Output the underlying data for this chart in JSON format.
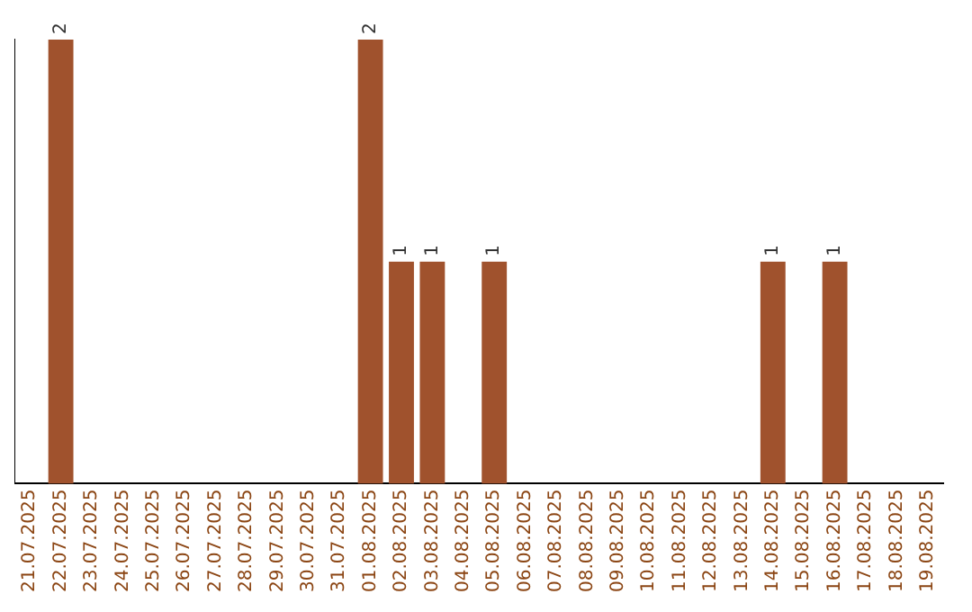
{
  "chart_data": {
    "type": "bar",
    "categories": [
      "21.07.2025",
      "22.07.2025",
      "23.07.2025",
      "24.07.2025",
      "25.07.2025",
      "26.07.2025",
      "27.07.2025",
      "28.07.2025",
      "29.07.2025",
      "30.07.2025",
      "31.07.2025",
      "01.08.2025",
      "02.08.2025",
      "03.08.2025",
      "04.08.2025",
      "05.08.2025",
      "06.08.2025",
      "07.08.2025",
      "08.08.2025",
      "09.08.2025",
      "10.08.2025",
      "11.08.2025",
      "12.08.2025",
      "13.08.2025",
      "14.08.2025",
      "15.08.2025",
      "16.08.2025",
      "17.08.2025",
      "18.08.2025",
      "19.08.2025"
    ],
    "values": [
      0,
      2,
      0,
      0,
      0,
      0,
      0,
      0,
      0,
      0,
      0,
      2,
      1,
      1,
      0,
      1,
      0,
      0,
      0,
      0,
      0,
      0,
      0,
      0,
      1,
      0,
      1,
      0,
      0,
      0
    ],
    "value_labels": [
      null,
      "2",
      null,
      null,
      null,
      null,
      null,
      null,
      null,
      null,
      null,
      "2",
      "1",
      "1",
      null,
      "1",
      null,
      null,
      null,
      null,
      null,
      null,
      null,
      null,
      "1",
      null,
      "1",
      null,
      null,
      null
    ],
    "color": "#a0522d",
    "grid": false,
    "legend": false,
    "tick_labels": "x"
  }
}
